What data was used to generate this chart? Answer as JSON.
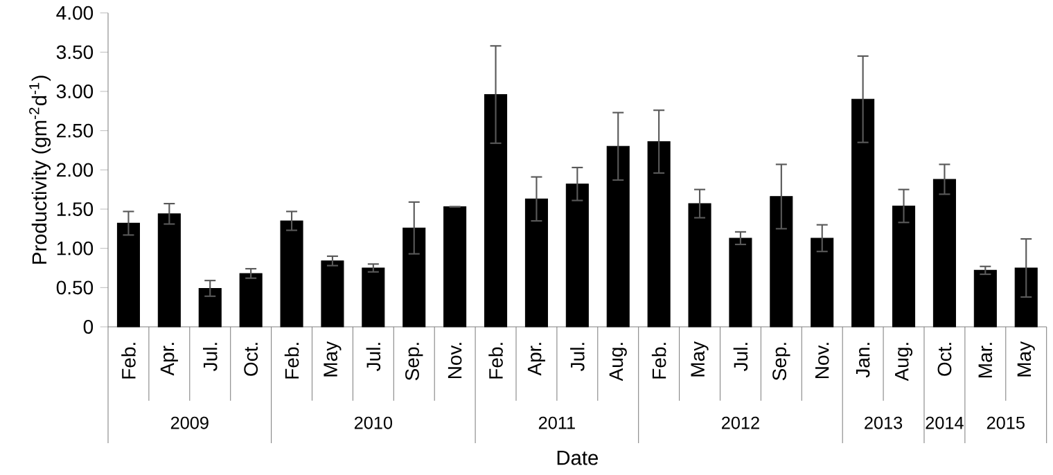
{
  "chart_data": {
    "type": "bar",
    "xlabel": "Date",
    "ylabel": "Productivity (gm$^{-2}$d$^{-1}$)",
    "categories": [
      "Feb.",
      "Apr.",
      "Jul.",
      "Oct.",
      "Feb.",
      "May",
      "Jul.",
      "Sep.",
      "Nov.",
      "Feb.",
      "Apr.",
      "Jul.",
      "Aug.",
      "Feb.",
      "May",
      "Jul.",
      "Sep.",
      "Nov.",
      "Jan.",
      "Aug.",
      "Oct.",
      "Mar.",
      "May"
    ],
    "values": [
      1.32,
      1.44,
      0.49,
      0.68,
      1.35,
      0.84,
      0.75,
      1.26,
      1.53,
      2.96,
      1.63,
      1.82,
      2.3,
      2.36,
      1.57,
      1.13,
      1.66,
      1.13,
      2.9,
      1.54,
      1.88,
      0.72,
      0.75
    ],
    "errors": [
      0.15,
      0.13,
      0.1,
      0.06,
      0.12,
      0.06,
      0.05,
      0.33,
      null,
      0.62,
      0.28,
      0.21,
      0.43,
      0.4,
      0.18,
      0.08,
      0.41,
      0.17,
      0.55,
      0.21,
      0.19,
      0.05,
      0.37
    ],
    "color": "#000000",
    "ylim": [
      0,
      4
    ],
    "yticks": [
      0,
      {
        "value": 0.5,
        "label": "0.50"
      },
      {
        "value": 1,
        "label": "1.00"
      },
      {
        "value": 1.5,
        "label": "1.50"
      },
      {
        "value": 2,
        "label": "2.00"
      },
      {
        "value": 2.5,
        "label": "2.50"
      },
      {
        "value": 3,
        "label": "3.00"
      },
      {
        "value": 3.5,
        "label": "3.50"
      },
      {
        "value": 4,
        "label": "4.00"
      }
    ],
    "annotations": [
      "2009",
      "2010",
      "2011",
      "2012",
      "2013",
      "2014",
      "2015"
    ]
  }
}
